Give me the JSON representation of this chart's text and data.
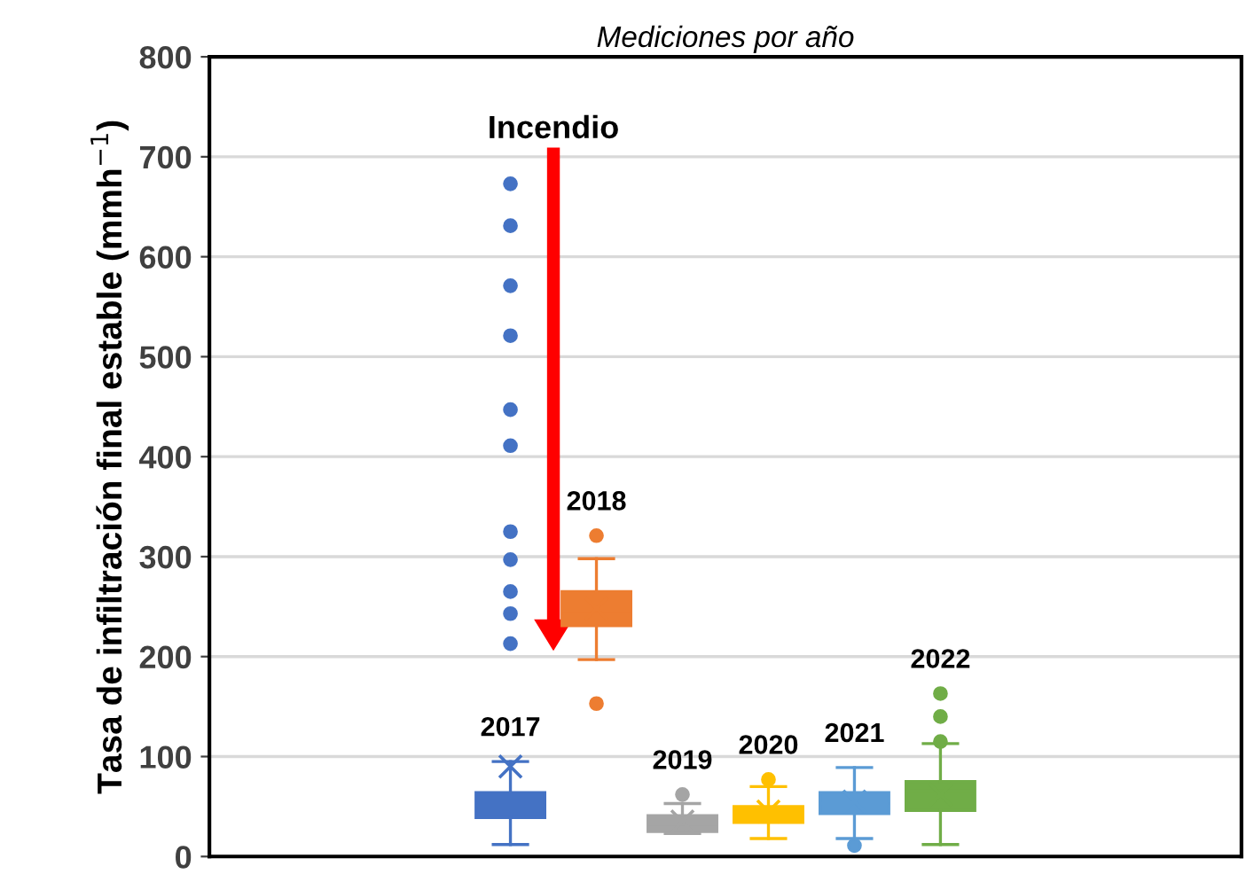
{
  "chart_data": {
    "type": "box",
    "title": "Mediciones por año",
    "ylabel": "Tasa de infiltración final estable (mmh$^{−1}$)",
    "categories": [
      null,
      null,
      null,
      null,
      null,
      null,
      null,
      null,
      null,
      null,
      null,
      null
    ],
    "colors": [
      null,
      null,
      null,
      "#4472c4",
      "#ed7d31",
      "#a5a5a5",
      "#ffc000",
      "#5b9bd5",
      "#70ad47",
      null,
      null,
      null
    ],
    "boxes": [
      null,
      null,
      null,
      {
        "low": 12,
        "q1": 39,
        "median": 51,
        "q3": 64,
        "high": 95,
        "mean": 90,
        "outliers": [
          673,
          631,
          571,
          521,
          447,
          411,
          325,
          297,
          265,
          243,
          213
        ]
      },
      {
        "low": 197,
        "q1": 231,
        "median": 243,
        "q3": 265,
        "high": 298,
        "mean": 248,
        "outliers": [
          321,
          153
        ]
      },
      {
        "low": 23,
        "q1": 25,
        "median": 32,
        "q3": 41,
        "high": 53,
        "mean": 35,
        "outliers": [
          62
        ]
      },
      {
        "low": 18,
        "q1": 34,
        "median": 43,
        "q3": 50,
        "high": 70,
        "mean": 45,
        "outliers": [
          77
        ]
      },
      {
        "low": 18,
        "q1": 43,
        "median": 53,
        "q3": 64,
        "high": 89,
        "mean": 55,
        "outliers": [
          11
        ]
      },
      {
        "low": 12,
        "q1": 46,
        "median": 66,
        "q3": 75,
        "high": 113,
        "mean": 62,
        "outliers": [
          115,
          140,
          163
        ]
      },
      null,
      null,
      null
    ],
    "annotations": [
      "2017",
      "2018",
      "2019",
      "2020",
      "2021",
      "2022",
      "Incendio"
    ],
    "ylim": [
      0,
      800
    ],
    "yticks": [
      0,
      100,
      200,
      300,
      400,
      500,
      600,
      700,
      800
    ],
    "grid": "y",
    "tick_labels": "y"
  }
}
